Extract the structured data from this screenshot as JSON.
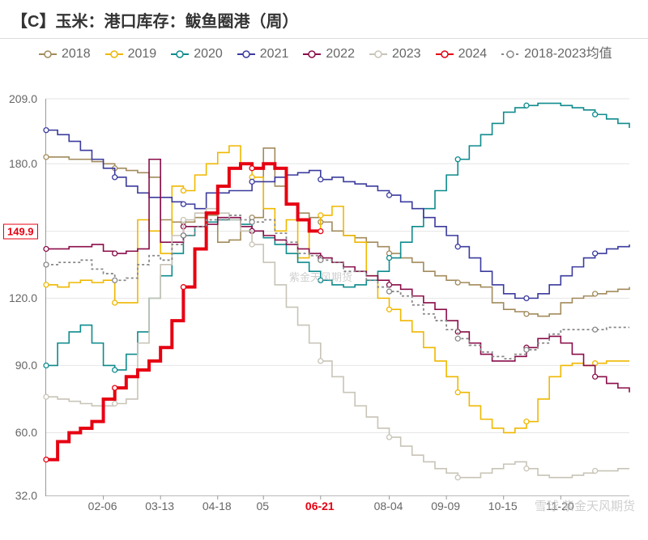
{
  "title": "【C】玉米：港口库存：鲅鱼圈港（周）",
  "watermark_center": "紫金天风期货",
  "watermark_footer": "雪球  紫金天风期货",
  "chart": {
    "type": "line-step",
    "background_color": "#ffffff",
    "grid_color": "#e6e6e6",
    "axis_color": "#999999",
    "label_color": "#666666",
    "label_fontsize": 14,
    "title_fontsize": 20,
    "legend_fontsize": 16,
    "ylim": [
      32,
      209
    ],
    "yticks": [
      32.0,
      60.0,
      90.0,
      120.0,
      149.9,
      180.0,
      209.0
    ],
    "ytick_labels": [
      "32.0",
      "60.0",
      "90.0",
      "120.0",
      "",
      "180.0",
      "209.0"
    ],
    "current_value_label": "149.9",
    "current_value": 149.9,
    "xlim_weeks": [
      1,
      52
    ],
    "xticks_weeks": [
      6,
      11,
      16,
      20,
      25,
      31,
      36,
      41,
      46
    ],
    "xtick_labels": [
      "02-06",
      "03-13",
      "04-18",
      "05",
      "06-21",
      "08-04",
      "09-09",
      "10-15",
      "11-20"
    ],
    "xtick_highlight_index": 4,
    "series": [
      {
        "name": "2018",
        "label": "2018",
        "color": "#a28b5c",
        "width": 1.6,
        "dash": null,
        "markers": true,
        "values": [
          183,
          183,
          182,
          182,
          181,
          180,
          178,
          177,
          176,
          174,
          155,
          154,
          154,
          156,
          157,
          145,
          146,
          150,
          156,
          187,
          170,
          162,
          158,
          156,
          154,
          150,
          148,
          147,
          145,
          143,
          140,
          138,
          136,
          132,
          130,
          128,
          127,
          126,
          125,
          118,
          115,
          114,
          113,
          112,
          113,
          118,
          120,
          121,
          122,
          123,
          124,
          125
        ]
      },
      {
        "name": "2019",
        "label": "2019",
        "color": "#efb800",
        "width": 1.6,
        "dash": null,
        "markers": true,
        "values": [
          126,
          125,
          127,
          128,
          127,
          128,
          118,
          118,
          155,
          150,
          140,
          170,
          168,
          175,
          180,
          185,
          188,
          180,
          174,
          160,
          150,
          155,
          138,
          150,
          157,
          161,
          148,
          145,
          130,
          120,
          115,
          110,
          105,
          98,
          92,
          85,
          78,
          72,
          66,
          62,
          60,
          62,
          65,
          75,
          85,
          90,
          91,
          90,
          91,
          92,
          92,
          92
        ]
      },
      {
        "name": "2020",
        "label": "2020",
        "color": "#0f8b8d",
        "width": 1.6,
        "dash": null,
        "markers": true,
        "values": [
          90,
          100,
          105,
          108,
          100,
          90,
          88,
          95,
          105,
          120,
          130,
          140,
          148,
          152,
          154,
          155,
          155,
          153,
          150,
          147,
          144,
          140,
          136,
          132,
          128,
          126,
          125,
          126,
          128,
          132,
          138,
          145,
          152,
          160,
          168,
          175,
          182,
          188,
          193,
          198,
          203,
          205,
          206,
          207,
          207,
          206,
          205,
          204,
          202,
          200,
          198,
          196
        ]
      },
      {
        "name": "2021",
        "label": "2021",
        "color": "#3b3b9e",
        "width": 1.6,
        "dash": null,
        "markers": true,
        "values": [
          195,
          193,
          190,
          186,
          182,
          178,
          174,
          170,
          167,
          165,
          165,
          163,
          162,
          160,
          167,
          167,
          168,
          168,
          172,
          172,
          174,
          175,
          176,
          177,
          173,
          174,
          172,
          171,
          170,
          168,
          166,
          163,
          160,
          156,
          152,
          148,
          143,
          138,
          132,
          126,
          122,
          120,
          120,
          122,
          126,
          130,
          134,
          138,
          140,
          142,
          143,
          144
        ]
      },
      {
        "name": "2022",
        "label": "2022",
        "color": "#8a0e4a",
        "width": 1.6,
        "dash": null,
        "markers": true,
        "values": [
          142,
          142,
          143,
          143,
          144,
          141,
          140,
          141,
          142,
          182,
          145,
          145,
          152,
          152,
          153,
          156,
          156,
          152,
          150,
          148,
          146,
          144,
          142,
          140,
          138,
          136,
          134,
          132,
          130,
          128,
          126,
          124,
          121,
          118,
          115,
          110,
          105,
          100,
          95,
          92,
          92,
          94,
          98,
          102,
          103,
          100,
          95,
          90,
          85,
          82,
          80,
          78
        ]
      },
      {
        "name": "2023",
        "label": "2023",
        "color": "#c8c4b7",
        "width": 1.6,
        "dash": null,
        "markers": true,
        "values": [
          76,
          75,
          74,
          73,
          72,
          72,
          73,
          75,
          100,
          120,
          135,
          148,
          155,
          158,
          160,
          158,
          155,
          150,
          144,
          136,
          126,
          116,
          108,
          100,
          92,
          85,
          78,
          72,
          67,
          62,
          58,
          54,
          50,
          47,
          44,
          42,
          40,
          40,
          42,
          44,
          46,
          47,
          44,
          41,
          40,
          40,
          41,
          42,
          43,
          43,
          44,
          44
        ]
      },
      {
        "name": "2024",
        "label": "2024",
        "color": "#e60012",
        "width": 4.0,
        "dash": null,
        "markers": true,
        "values": [
          48,
          56,
          60,
          62,
          65,
          75,
          80,
          85,
          88,
          92,
          98,
          110,
          125,
          142,
          158,
          170,
          178,
          180,
          178,
          180,
          178,
          162,
          155,
          150,
          149.9
        ]
      },
      {
        "name": "avg",
        "label": "2018-2023均值",
        "color": "#888888",
        "width": 1.8,
        "dash": "3,3",
        "markers": true,
        "values": [
          135,
          136,
          136,
          137,
          133,
          131,
          128,
          129,
          135,
          139,
          137,
          144,
          148,
          152,
          155,
          155,
          157,
          155,
          154,
          155,
          149,
          145,
          140,
          139,
          137,
          136,
          132,
          132,
          128,
          125,
          123,
          121,
          117,
          113,
          110,
          106,
          102,
          99,
          96,
          94,
          93,
          95,
          97,
          100,
          104,
          106,
          106,
          106,
          106,
          107,
          107,
          107
        ]
      }
    ]
  }
}
